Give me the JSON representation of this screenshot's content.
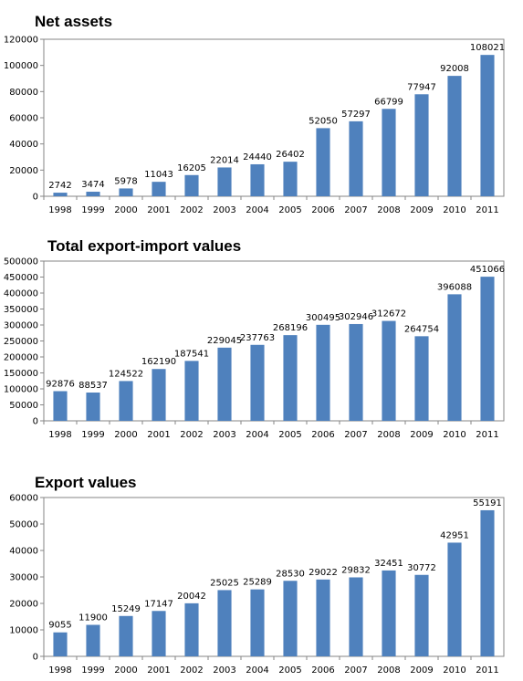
{
  "chart_data": [
    {
      "type": "bar",
      "title": "Net assets",
      "categories": [
        "1998",
        "1999",
        "2000",
        "2001",
        "2002",
        "2003",
        "2004",
        "2005",
        "2006",
        "2007",
        "2008",
        "2009",
        "2010",
        "2011"
      ],
      "values": [
        2742,
        3474,
        5978,
        11043,
        16205,
        22014,
        24440,
        26402,
        52050,
        57297,
        66799,
        77947,
        92008,
        108021
      ],
      "ylim": [
        0,
        120000
      ],
      "yticks": [
        0,
        20000,
        40000,
        60000,
        80000,
        100000,
        120000
      ],
      "grid": false,
      "color": "#4f81bd"
    },
    {
      "type": "bar",
      "title": "Total export-import values",
      "categories": [
        "1998",
        "1999",
        "2000",
        "2001",
        "2002",
        "2003",
        "2004",
        "2005",
        "2006",
        "2007",
        "2008",
        "2009",
        "2010",
        "2011"
      ],
      "values": [
        92876,
        88537,
        124522,
        162190,
        187541,
        229045,
        237763,
        268196,
        300495,
        302946,
        312672,
        264754,
        396088,
        451066
      ],
      "ylim": [
        0,
        500000
      ],
      "yticks": [
        0,
        50000,
        100000,
        150000,
        200000,
        250000,
        300000,
        350000,
        400000,
        450000,
        500000
      ],
      "grid": false,
      "color": "#4f81bd"
    },
    {
      "type": "bar",
      "title": "Export values",
      "categories": [
        "1998",
        "1999",
        "2000",
        "2001",
        "2002",
        "2003",
        "2004",
        "2005",
        "2006",
        "2007",
        "2008",
        "2009",
        "2010",
        "2011"
      ],
      "values": [
        9055,
        11900,
        15249,
        17147,
        20042,
        25025,
        25289,
        28530,
        29022,
        29832,
        32451,
        30772,
        42951,
        55191
      ],
      "ylim": [
        0,
        60000
      ],
      "yticks": [
        0,
        10000,
        20000,
        30000,
        40000,
        50000,
        60000
      ],
      "grid": false,
      "color": "#4f81bd"
    }
  ]
}
